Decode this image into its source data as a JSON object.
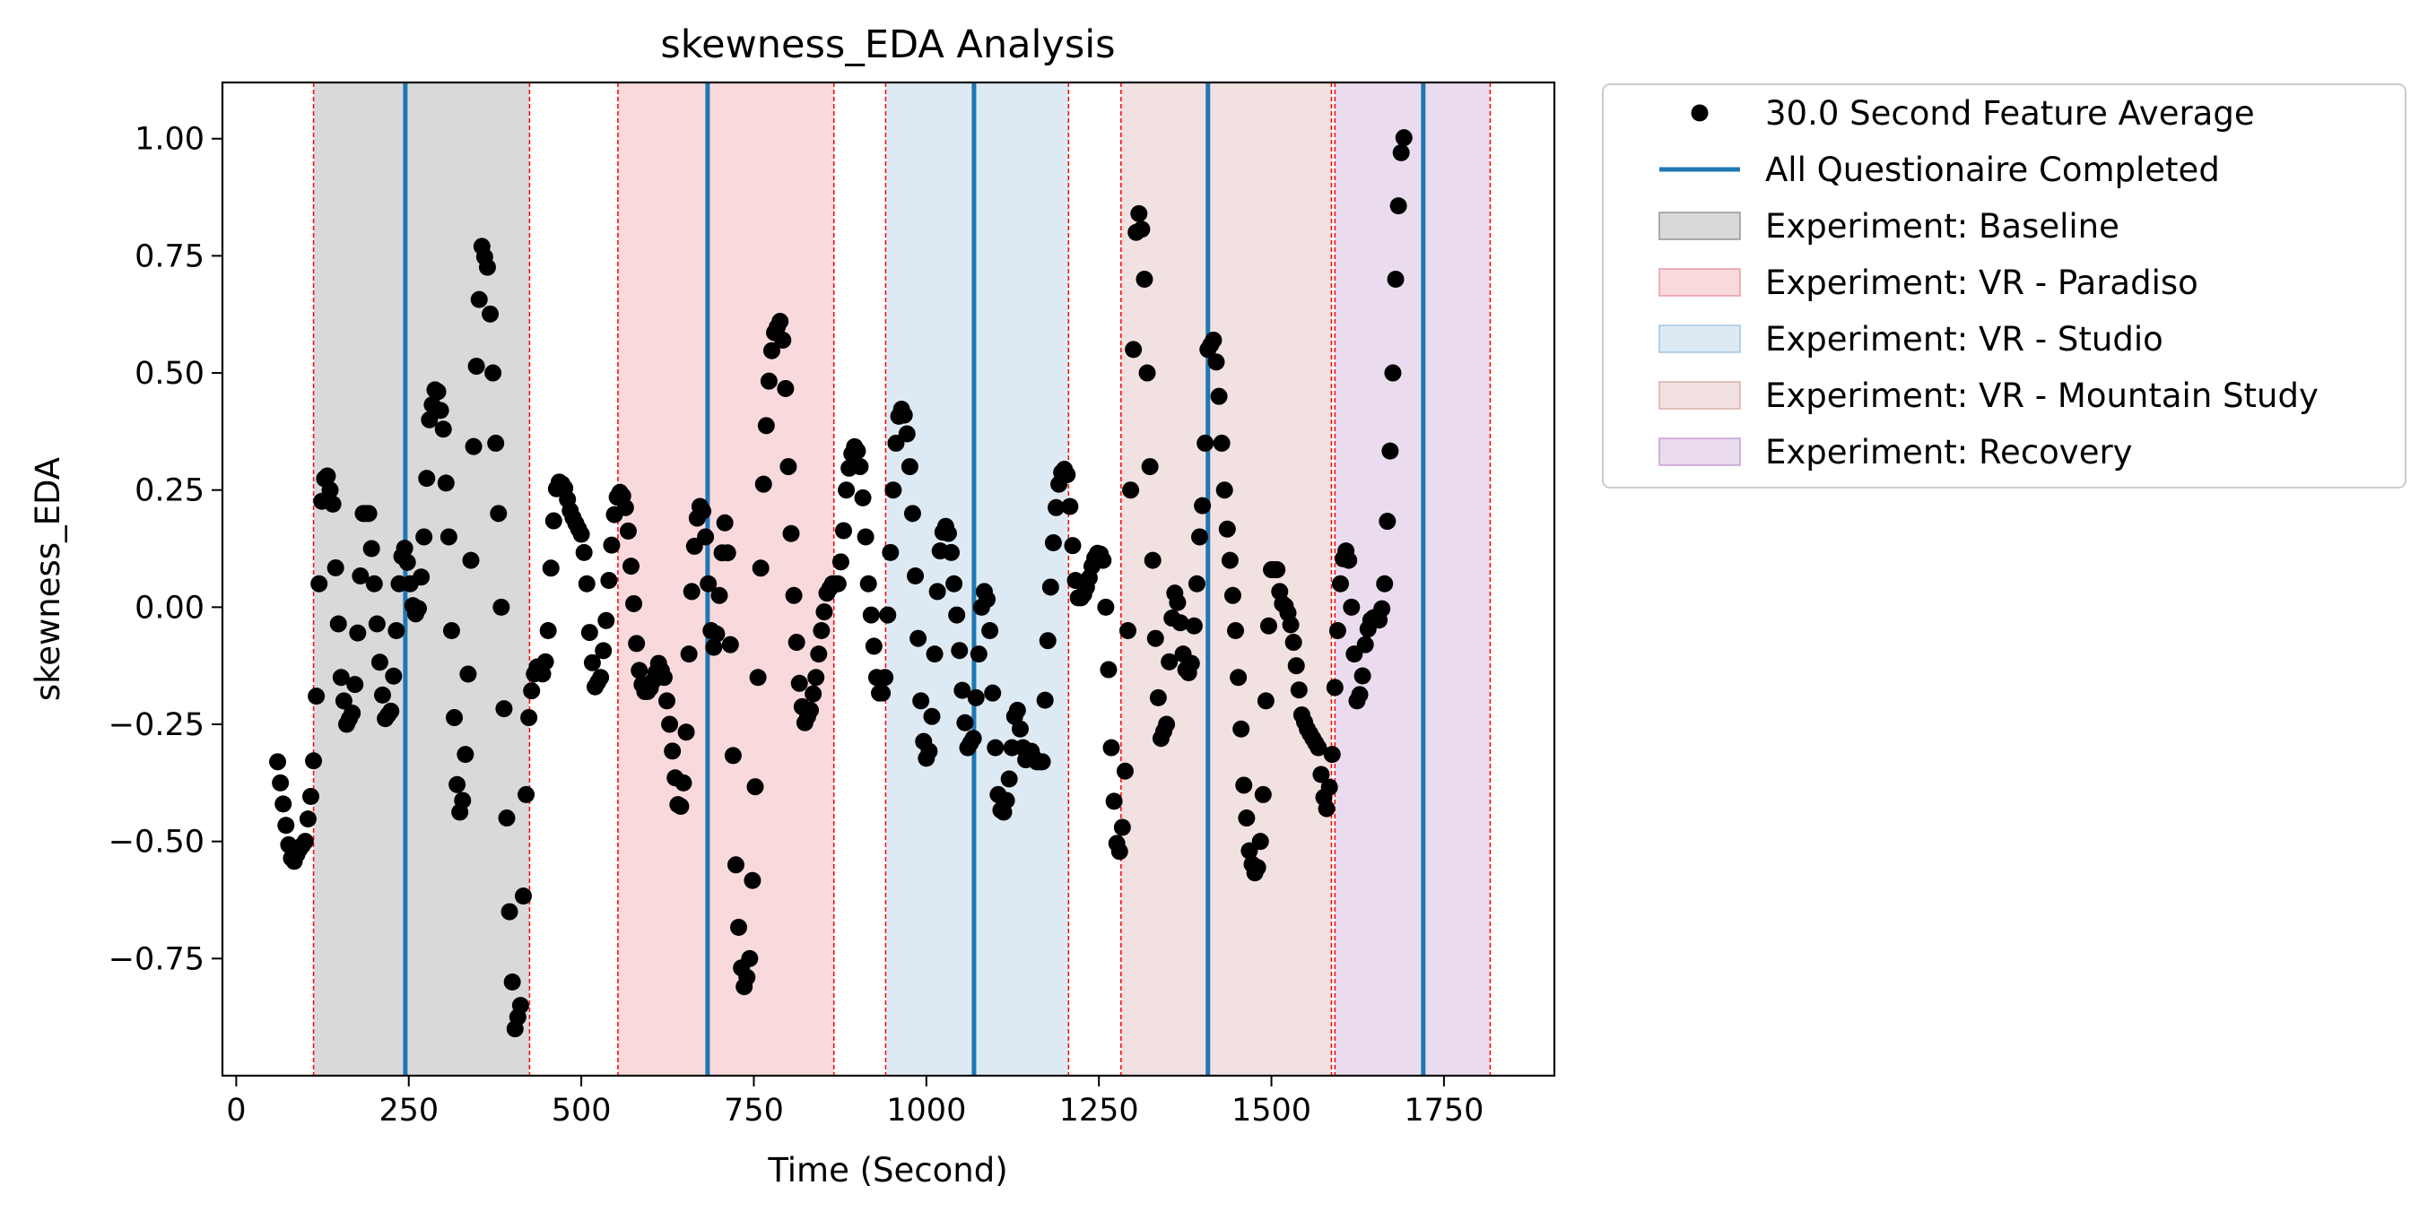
{
  "chart_data": {
    "type": "scatter",
    "title": "skewness_EDA Analysis",
    "xlabel": "Time (Second)",
    "ylabel": "skewness_EDA",
    "xlim": [
      -20,
      1910
    ],
    "ylim": [
      -1.0,
      1.12
    ],
    "xticks": [
      0,
      250,
      500,
      750,
      1000,
      1250,
      1500,
      1750
    ],
    "xtick_labels": [
      "0",
      "250",
      "500",
      "750",
      "1000",
      "1250",
      "1500",
      "1750"
    ],
    "yticks": [
      -0.75,
      -0.5,
      -0.25,
      0.0,
      0.25,
      0.5,
      0.75,
      1.0
    ],
    "ytick_labels": [
      "−0.75",
      "−0.50",
      "−0.25",
      "0.00",
      "0.25",
      "0.50",
      "0.75",
      "1.00"
    ],
    "grid": false,
    "legend_position": "outside-right",
    "series": [
      {
        "name": "30.0 Second Feature Average",
        "kind": "points",
        "color": "#000000",
        "spacing_seconds": 4,
        "anchors": [
          [
            60,
            -0.33
          ],
          [
            68,
            -0.42
          ],
          [
            75,
            -0.5
          ],
          [
            82,
            -0.55
          ],
          [
            90,
            -0.52
          ],
          [
            100,
            -0.5
          ],
          [
            110,
            -0.38
          ],
          [
            115,
            -0.25
          ],
          [
            120,
            0.05
          ],
          [
            125,
            0.27
          ],
          [
            132,
            0.28
          ],
          [
            140,
            0.22
          ],
          [
            145,
            0.05
          ],
          [
            152,
            -0.15
          ],
          [
            160,
            -0.25
          ],
          [
            170,
            -0.22
          ],
          [
            178,
            0.0
          ],
          [
            184,
            0.2
          ],
          [
            192,
            0.2
          ],
          [
            200,
            0.05
          ],
          [
            207,
            -0.1
          ],
          [
            215,
            -0.24
          ],
          [
            225,
            -0.22
          ],
          [
            232,
            -0.05
          ],
          [
            238,
            0.1
          ],
          [
            245,
            0.13
          ],
          [
            252,
            0.05
          ],
          [
            258,
            -0.02
          ],
          [
            265,
            0.0
          ],
          [
            272,
            0.15
          ],
          [
            280,
            0.4
          ],
          [
            290,
            0.48
          ],
          [
            300,
            0.38
          ],
          [
            308,
            0.15
          ],
          [
            315,
            -0.2
          ],
          [
            322,
            -0.45
          ],
          [
            330,
            -0.4
          ],
          [
            337,
            -0.1
          ],
          [
            343,
            0.3
          ],
          [
            350,
            0.6
          ],
          [
            356,
            0.77
          ],
          [
            365,
            0.72
          ],
          [
            372,
            0.5
          ],
          [
            380,
            0.2
          ],
          [
            386,
            -0.1
          ],
          [
            392,
            -0.45
          ],
          [
            398,
            -0.75
          ],
          [
            404,
            -0.9
          ],
          [
            412,
            -0.85
          ],
          [
            418,
            -0.5
          ],
          [
            423,
            -0.25
          ],
          [
            430,
            -0.15
          ],
          [
            438,
            -0.12
          ],
          [
            446,
            -0.15
          ],
          [
            452,
            -0.05
          ],
          [
            458,
            0.15
          ],
          [
            465,
            0.27
          ],
          [
            475,
            0.26
          ],
          [
            485,
            0.2
          ],
          [
            495,
            0.17
          ],
          [
            502,
            0.15
          ],
          [
            508,
            0.05
          ],
          [
            513,
            -0.08
          ],
          [
            520,
            -0.17
          ],
          [
            528,
            -0.15
          ],
          [
            535,
            -0.05
          ],
          [
            542,
            0.1
          ],
          [
            550,
            0.23
          ],
          [
            558,
            0.25
          ],
          [
            566,
            0.2
          ],
          [
            574,
            0.05
          ],
          [
            582,
            -0.12
          ],
          [
            590,
            -0.18
          ],
          [
            598,
            -0.18
          ],
          [
            606,
            -0.15
          ],
          [
            612,
            -0.12
          ],
          [
            620,
            -0.15
          ],
          [
            628,
            -0.25
          ],
          [
            635,
            -0.35
          ],
          [
            642,
            -0.45
          ],
          [
            650,
            -0.35
          ],
          [
            656,
            -0.1
          ],
          [
            662,
            0.1
          ],
          [
            670,
            0.22
          ],
          [
            678,
            0.2
          ],
          [
            684,
            0.05
          ],
          [
            690,
            -0.1
          ],
          [
            697,
            -0.05
          ],
          [
            703,
            0.1
          ],
          [
            708,
            0.18
          ],
          [
            713,
            0.1
          ],
          [
            718,
            -0.2
          ],
          [
            724,
            -0.55
          ],
          [
            730,
            -0.75
          ],
          [
            737,
            -0.82
          ],
          [
            744,
            -0.75
          ],
          [
            750,
            -0.5
          ],
          [
            756,
            -0.15
          ],
          [
            762,
            0.2
          ],
          [
            770,
            0.45
          ],
          [
            778,
            0.58
          ],
          [
            788,
            0.61
          ],
          [
            794,
            0.55
          ],
          [
            800,
            0.3
          ],
          [
            807,
            0.05
          ],
          [
            815,
            -0.15
          ],
          [
            823,
            -0.25
          ],
          [
            832,
            -0.22
          ],
          [
            840,
            -0.15
          ],
          [
            848,
            -0.05
          ],
          [
            856,
            0.03
          ],
          [
            864,
            0.05
          ],
          [
            872,
            0.05
          ],
          [
            878,
            0.12
          ],
          [
            884,
            0.25
          ],
          [
            890,
            0.32
          ],
          [
            898,
            0.35
          ],
          [
            904,
            0.3
          ],
          [
            910,
            0.2
          ],
          [
            916,
            0.05
          ],
          [
            922,
            -0.05
          ],
          [
            928,
            -0.15
          ],
          [
            934,
            -0.2
          ],
          [
            940,
            -0.15
          ],
          [
            946,
            0.05
          ],
          [
            952,
            0.25
          ],
          [
            958,
            0.4
          ],
          [
            966,
            0.43
          ],
          [
            974,
            0.35
          ],
          [
            980,
            0.2
          ],
          [
            986,
            0.0
          ],
          [
            992,
            -0.2
          ],
          [
            998,
            -0.33
          ],
          [
            1006,
            -0.3
          ],
          [
            1012,
            -0.1
          ],
          [
            1018,
            0.1
          ],
          [
            1026,
            0.18
          ],
          [
            1034,
            0.15
          ],
          [
            1040,
            0.05
          ],
          [
            1046,
            -0.05
          ],
          [
            1054,
            -0.22
          ],
          [
            1060,
            -0.3
          ],
          [
            1068,
            -0.28
          ],
          [
            1074,
            -0.15
          ],
          [
            1080,
            0.0
          ],
          [
            1086,
            0.05
          ],
          [
            1092,
            -0.05
          ],
          [
            1098,
            -0.25
          ],
          [
            1104,
            -0.4
          ],
          [
            1110,
            -0.45
          ],
          [
            1118,
            -0.4
          ],
          [
            1124,
            -0.3
          ],
          [
            1130,
            -0.2
          ],
          [
            1137,
            -0.27
          ],
          [
            1143,
            -0.33
          ],
          [
            1150,
            -0.3
          ],
          [
            1158,
            -0.33
          ],
          [
            1168,
            -0.33
          ],
          [
            1175,
            -0.1
          ],
          [
            1182,
            0.1
          ],
          [
            1190,
            0.25
          ],
          [
            1198,
            0.3
          ],
          [
            1205,
            0.28
          ],
          [
            1211,
            0.15
          ],
          [
            1218,
            0.02
          ],
          [
            1226,
            0.02
          ],
          [
            1234,
            0.05
          ],
          [
            1242,
            0.1
          ],
          [
            1250,
            0.12
          ],
          [
            1256,
            0.1
          ],
          [
            1262,
            -0.05
          ],
          [
            1268,
            -0.3
          ],
          [
            1275,
            -0.5
          ],
          [
            1282,
            -0.53
          ],
          [
            1288,
            -0.35
          ],
          [
            1292,
            -0.05
          ],
          [
            1296,
            0.25
          ],
          [
            1300,
            0.55
          ],
          [
            1304,
            0.8
          ],
          [
            1310,
            0.86
          ],
          [
            1316,
            0.7
          ],
          [
            1322,
            0.4
          ],
          [
            1328,
            0.1
          ],
          [
            1334,
            -0.15
          ],
          [
            1340,
            -0.28
          ],
          [
            1348,
            -0.25
          ],
          [
            1354,
            -0.05
          ],
          [
            1360,
            0.03
          ],
          [
            1366,
            0.0
          ],
          [
            1372,
            -0.1
          ],
          [
            1378,
            -0.15
          ],
          [
            1384,
            -0.12
          ],
          [
            1390,
            0.0
          ],
          [
            1396,
            0.15
          ],
          [
            1402,
            0.25
          ],
          [
            1408,
            0.55
          ],
          [
            1416,
            0.57
          ],
          [
            1422,
            0.5
          ],
          [
            1428,
            0.35
          ],
          [
            1434,
            0.2
          ],
          [
            1440,
            0.1
          ],
          [
            1448,
            -0.05
          ],
          [
            1454,
            -0.2
          ],
          [
            1460,
            -0.38
          ],
          [
            1468,
            -0.52
          ],
          [
            1475,
            -0.57
          ],
          [
            1482,
            -0.55
          ],
          [
            1488,
            -0.4
          ],
          [
            1494,
            -0.1
          ],
          [
            1500,
            0.08
          ],
          [
            1508,
            0.08
          ],
          [
            1514,
            0.01
          ],
          [
            1522,
            0.0
          ],
          [
            1530,
            -0.05
          ],
          [
            1538,
            -0.15
          ],
          [
            1544,
            -0.23
          ],
          [
            1552,
            -0.26
          ],
          [
            1560,
            -0.28
          ],
          [
            1568,
            -0.3
          ],
          [
            1575,
            -0.4
          ],
          [
            1580,
            -0.43
          ],
          [
            1587,
            -0.35
          ],
          [
            1594,
            -0.1
          ],
          [
            1600,
            0.05
          ],
          [
            1606,
            0.13
          ],
          [
            1612,
            0.1
          ],
          [
            1618,
            -0.05
          ],
          [
            1624,
            -0.2
          ],
          [
            1630,
            -0.18
          ],
          [
            1636,
            -0.08
          ],
          [
            1642,
            -0.03
          ],
          [
            1650,
            -0.02
          ],
          [
            1658,
            -0.03
          ],
          [
            1664,
            0.05
          ],
          [
            1670,
            0.25
          ],
          [
            1676,
            0.5
          ],
          [
            1682,
            0.8
          ],
          [
            1688,
            0.97
          ],
          [
            1693,
            1.01
          ]
        ]
      },
      {
        "name": "All Questionaire Completed",
        "kind": "vlines",
        "color": "#1f77b4",
        "x": [
          245,
          683,
          1069,
          1408,
          1720
        ]
      }
    ],
    "regions": [
      {
        "name": "Experiment: Baseline",
        "start": 112,
        "end": 425,
        "color": "#808080",
        "opacity": 0.3
      },
      {
        "name": "Experiment: VR - Paradiso",
        "start": 553,
        "end": 866,
        "color": "#e8868f",
        "opacity": 0.3
      },
      {
        "name": "Experiment: VR - Studio",
        "start": 941,
        "end": 1206,
        "color": "#8fb8da",
        "opacity": 0.3
      },
      {
        "name": "Experiment: VR - Mountain Study",
        "start": 1282,
        "end": 1587,
        "color": "#d49c9a",
        "opacity": 0.3
      },
      {
        "name": "Experiment: Recovery",
        "start": 1592,
        "end": 1817,
        "color": "#b88ac8",
        "opacity": 0.3
      }
    ],
    "boundary_lines": {
      "color": "#ff0000",
      "style": "dashed",
      "x": [
        112,
        425,
        553,
        866,
        941,
        1206,
        1282,
        1587,
        1592,
        1817
      ]
    }
  }
}
